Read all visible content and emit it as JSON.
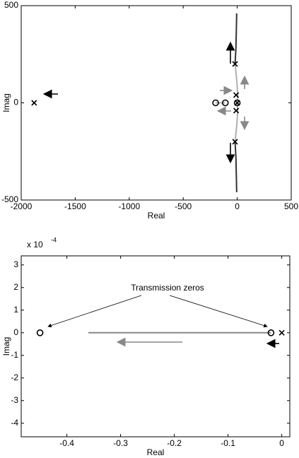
{
  "chart_data": [
    {
      "type": "scatter",
      "xlabel": "Real",
      "ylabel": "Imag",
      "xlim": [
        -2000,
        500
      ],
      "ylim": [
        -500,
        500
      ],
      "xticks": [
        -2000,
        -1500,
        -1000,
        -500,
        0,
        500
      ],
      "yticks": [
        -500,
        0,
        500
      ],
      "series": [
        {
          "mode": "line",
          "color": "#333333",
          "x": [
            -20,
            -12,
            -8,
            -5
          ],
          "y": [
            200,
            280,
            380,
            460
          ]
        },
        {
          "mode": "line",
          "color": "#333333",
          "x": [
            -20,
            -12,
            -8,
            -5
          ],
          "y": [
            -200,
            -280,
            -380,
            -460
          ]
        },
        {
          "mode": "line",
          "color": "#b0b0b0",
          "x": [
            -20,
            -5,
            5,
            0,
            5,
            -5,
            -20
          ],
          "y": [
            200,
            120,
            40,
            0,
            -40,
            -120,
            -200
          ]
        },
        {
          "mode": "line",
          "color": "#b0b0b0",
          "x": [
            -200,
            -110
          ],
          "y": [
            0,
            0
          ]
        },
        {
          "mode": "marker",
          "marker": "x",
          "color": "#000000",
          "x": [
            -1880,
            -20,
            -20,
            -10,
            -10,
            0
          ],
          "y": [
            0,
            200,
            -200,
            40,
            -40,
            0
          ]
        },
        {
          "mode": "marker",
          "marker": "o",
          "color": "#000000",
          "x": [
            -200,
            -110,
            0
          ],
          "y": [
            0,
            0,
            0
          ]
        }
      ]
    },
    {
      "type": "scatter",
      "xlabel": "Real",
      "ylabel": "Imag",
      "y_multiplier": "x 10",
      "y_exponent": "-4",
      "annotation": "Transmission zeros",
      "xlim": [
        -0.485,
        0.015
      ],
      "ylim": [
        -4.6,
        3.4
      ],
      "xticks": [
        -0.4,
        -0.3,
        -0.2,
        -0.1,
        0
      ],
      "yticks": [
        -4,
        -3,
        -2,
        -1,
        0,
        1,
        2,
        3
      ],
      "series": [
        {
          "mode": "line",
          "color": "#888888",
          "x": [
            -0.36,
            -0.02
          ],
          "y": [
            0,
            0
          ]
        },
        {
          "mode": "marker",
          "marker": "o",
          "color": "#000000",
          "x": [
            -0.45,
            -0.02
          ],
          "y": [
            0,
            0
          ]
        },
        {
          "mode": "marker",
          "marker": "x",
          "color": "#000000",
          "x": [
            0
          ],
          "y": [
            0
          ]
        }
      ]
    }
  ]
}
